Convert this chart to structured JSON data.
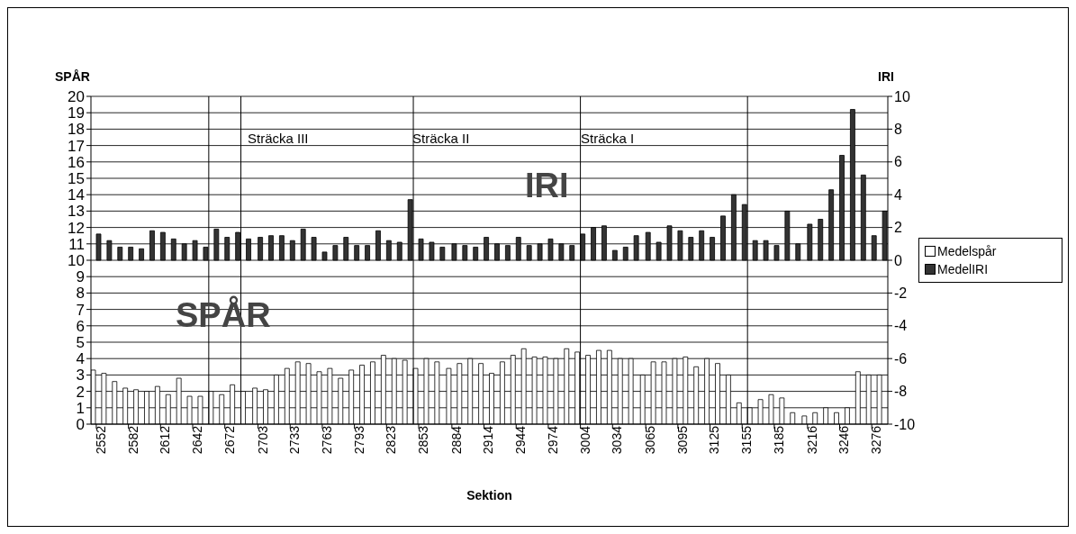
{
  "chart_data": {
    "type": "bar",
    "xlabel": "Sektion",
    "ylabel": "SPÅR",
    "y2label": "IRI",
    "x": [
      2552,
      2562,
      2572,
      2582,
      2592,
      2602,
      2612,
      2622,
      2632,
      2642,
      2652,
      2662,
      2672,
      2682,
      2692,
      2703,
      2713,
      2723,
      2733,
      2743,
      2753,
      2763,
      2773,
      2783,
      2793,
      2803,
      2813,
      2823,
      2833,
      2843,
      2853,
      2863,
      2873,
      2884,
      2894,
      2904,
      2914,
      2924,
      2934,
      2944,
      2954,
      2964,
      2974,
      2984,
      2994,
      3004,
      3014,
      3024,
      3034,
      3044,
      3054,
      3065,
      3075,
      3085,
      3095,
      3105,
      3115,
      3125,
      3135,
      3145,
      3155,
      3165,
      3175,
      3185,
      3195,
      3205,
      3216,
      3226,
      3236,
      3246,
      3256,
      3266,
      3276,
      3286
    ],
    "series": [
      {
        "name": "Medelspår",
        "color": "#ffffff",
        "values": [
          3.3,
          3.1,
          2.6,
          2.2,
          2.1,
          2.0,
          2.3,
          1.8,
          2.8,
          1.7,
          1.7,
          2.0,
          1.8,
          2.4,
          2.0,
          2.2,
          2.1,
          3.0,
          3.4,
          3.8,
          3.7,
          3.2,
          3.4,
          2.8,
          3.3,
          3.6,
          3.8,
          4.2,
          4.0,
          3.9,
          3.4,
          4.0,
          3.8,
          3.4,
          3.7,
          4.0,
          3.7,
          3.1,
          3.8,
          4.2,
          4.6,
          4.1,
          4.1,
          4.0,
          4.6,
          4.4,
          4.2,
          4.5,
          4.5,
          4.0,
          4.0,
          3.0,
          3.8,
          3.8,
          4.0,
          4.1,
          3.5,
          4.0,
          3.7,
          3.0,
          1.3,
          1.0,
          1.5,
          1.8,
          1.6,
          0.7,
          0.5,
          0.7,
          1.0,
          0.7,
          1.0,
          3.2,
          3.0,
          3.0
        ]
      },
      {
        "name": "MedelIRI",
        "color": "#333333",
        "axis": "y2",
        "values": [
          1.6,
          1.2,
          0.8,
          0.8,
          0.7,
          1.8,
          1.7,
          1.3,
          1.0,
          1.2,
          0.8,
          1.9,
          1.4,
          1.7,
          1.3,
          1.4,
          1.5,
          1.5,
          1.2,
          1.9,
          1.4,
          0.5,
          0.9,
          1.4,
          0.9,
          0.9,
          1.8,
          1.2,
          1.1,
          3.7,
          1.3,
          1.1,
          0.8,
          1.0,
          0.9,
          0.8,
          1.4,
          1.0,
          0.9,
          1.4,
          0.9,
          1.0,
          1.3,
          1.0,
          0.9,
          1.6,
          2.0,
          2.1,
          0.6,
          0.8,
          1.5,
          1.7,
          1.1,
          2.1,
          1.8,
          1.4,
          1.8,
          1.4,
          2.7,
          4.0,
          3.4,
          1.2,
          1.2,
          0.9,
          3.0,
          1.0,
          2.2,
          2.5,
          4.3,
          6.4,
          9.2,
          5.2,
          1.5,
          3.0
        ]
      }
    ],
    "xlim": [
      2547,
      3291
    ],
    "xticks": [
      2552,
      2582,
      2612,
      2642,
      2672,
      2703,
      2733,
      2763,
      2793,
      2823,
      2853,
      2884,
      2914,
      2944,
      2974,
      3004,
      3034,
      3065,
      3095,
      3125,
      3155,
      3185,
      3216,
      3246,
      3276
    ],
    "ylim": [
      0,
      20
    ],
    "yticks": [
      0,
      1,
      2,
      3,
      4,
      5,
      6,
      7,
      8,
      9,
      10,
      11,
      12,
      13,
      14,
      15,
      16,
      17,
      18,
      19,
      20
    ],
    "y2lim": [
      -10,
      10
    ],
    "y2ticks": [
      -10,
      -8,
      -6,
      -4,
      -2,
      0,
      2,
      4,
      6,
      8,
      10
    ],
    "ref_lines": [
      {
        "axis": "x",
        "value": 2657
      },
      {
        "axis": "x",
        "value": 2687
      },
      {
        "axis": "x",
        "value": 2848
      },
      {
        "axis": "x",
        "value": 3004
      },
      {
        "axis": "x",
        "value": 3160
      }
    ],
    "annotations": [
      "Sträcka III",
      "Sträcka II",
      "Sträcka I",
      "IRI",
      "SPÅR"
    ],
    "grid": "y",
    "legend": "right"
  }
}
